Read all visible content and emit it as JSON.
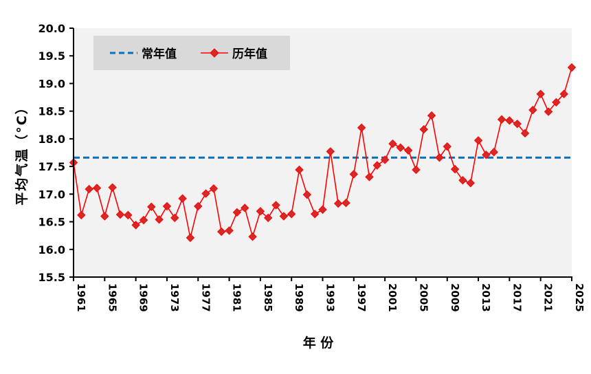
{
  "chart_data": {
    "type": "line",
    "title": "",
    "xlabel": "年 份",
    "ylabel": "平均气温（°C）",
    "ylim": [
      15.5,
      20.0
    ],
    "yticks": [
      "15.5",
      "16.0",
      "16.5",
      "17.0",
      "17.5",
      "18.0",
      "18.5",
      "19.0",
      "19.5",
      "20.0"
    ],
    "xlim": [
      1961,
      2025
    ],
    "xticks": [
      "1961",
      "1965",
      "1969",
      "1973",
      "1977",
      "1981",
      "1985",
      "1989",
      "1993",
      "1997",
      "2001",
      "2005",
      "2009",
      "2013",
      "2017",
      "2021",
      "2025"
    ],
    "grid": false,
    "legend_position": "top-left",
    "x": [
      1961,
      1962,
      1963,
      1964,
      1965,
      1966,
      1967,
      1968,
      1969,
      1970,
      1971,
      1972,
      1973,
      1974,
      1975,
      1976,
      1977,
      1978,
      1979,
      1980,
      1981,
      1982,
      1983,
      1984,
      1985,
      1986,
      1987,
      1988,
      1989,
      1990,
      1991,
      1992,
      1993,
      1994,
      1995,
      1996,
      1997,
      1998,
      1999,
      2000,
      2001,
      2002,
      2003,
      2004,
      2005,
      2006,
      2007,
      2008,
      2009,
      2010,
      2011,
      2012,
      2013,
      2014,
      2015,
      2016,
      2017,
      2018,
      2019,
      2020,
      2021,
      2022,
      2023,
      2024,
      2025
    ],
    "series": [
      {
        "name": "历年值",
        "color": "#ff0000",
        "marker": "diamond",
        "values": [
          17.57,
          16.62,
          17.09,
          17.11,
          16.6,
          17.12,
          16.63,
          16.62,
          16.44,
          16.53,
          16.77,
          16.54,
          16.78,
          16.57,
          16.92,
          16.21,
          16.78,
          17.01,
          17.1,
          16.32,
          16.34,
          16.67,
          16.75,
          16.23,
          16.69,
          16.57,
          16.8,
          16.6,
          16.64,
          17.44,
          16.99,
          16.64,
          16.72,
          17.77,
          16.83,
          16.84,
          17.36,
          18.2,
          17.31,
          17.52,
          17.62,
          17.91,
          17.84,
          17.79,
          17.44,
          18.17,
          18.42,
          17.66,
          17.86,
          17.45,
          17.25,
          17.2,
          17.97,
          17.71,
          17.76,
          18.35,
          18.33,
          18.27,
          18.1,
          18.52,
          18.81,
          18.49,
          18.66,
          18.81,
          19.29
        ]
      },
      {
        "name": "常年值",
        "color": "#0070c0",
        "style": "dashed",
        "value": 17.66
      }
    ],
    "colors": {
      "plot_bg": "#f2f2f2",
      "legend_bg": "#d9d9d9"
    }
  }
}
